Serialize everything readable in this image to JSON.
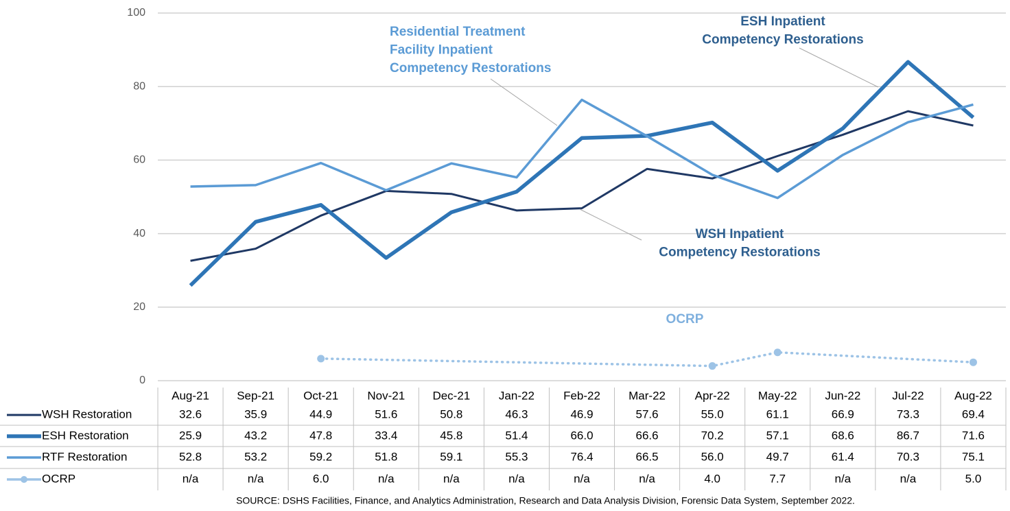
{
  "chart_data": {
    "type": "line",
    "categories": [
      "Aug-21",
      "Sep-21",
      "Oct-21",
      "Nov-21",
      "Dec-21",
      "Jan-22",
      "Feb-22",
      "Mar-22",
      "Apr-22",
      "May-22",
      "Jun-22",
      "Jul-22",
      "Aug-22"
    ],
    "ylim": [
      0,
      100
    ],
    "yticks": [
      0,
      20,
      40,
      60,
      80,
      100
    ],
    "grid": true,
    "series": [
      {
        "name": "WSH Restoration",
        "color": "#1f3864",
        "values": [
          32.6,
          35.9,
          44.9,
          51.6,
          50.8,
          46.3,
          46.9,
          57.6,
          55.0,
          61.1,
          66.9,
          73.3,
          69.4
        ],
        "value_labels": [
          "32.6",
          "35.9",
          "44.9",
          "51.6",
          "50.8",
          "46.3",
          "46.9",
          "57.6",
          "55.0",
          "61.1",
          "66.9",
          "73.3",
          "69.4"
        ]
      },
      {
        "name": "ESH Restoration",
        "color": "#2e75b6",
        "values": [
          25.9,
          43.2,
          47.8,
          33.4,
          45.8,
          51.4,
          66.0,
          66.6,
          70.2,
          57.1,
          68.6,
          86.7,
          71.6
        ],
        "value_labels": [
          "25.9",
          "43.2",
          "47.8",
          "33.4",
          "45.8",
          "51.4",
          "66.0",
          "66.6",
          "70.2",
          "57.1",
          "68.6",
          "86.7",
          "71.6"
        ]
      },
      {
        "name": "RTF Restoration",
        "color": "#5b9bd5",
        "values": [
          52.8,
          53.2,
          59.2,
          51.8,
          59.1,
          55.3,
          76.4,
          66.5,
          56.0,
          49.7,
          61.4,
          70.3,
          75.1
        ],
        "value_labels": [
          "52.8",
          "53.2",
          "59.2",
          "51.8",
          "59.1",
          "55.3",
          "76.4",
          "66.5",
          "56.0",
          "49.7",
          "61.4",
          "70.3",
          "75.1"
        ]
      },
      {
        "name": "OCRP",
        "color": "#9dc3e6",
        "dotted": true,
        "markers": true,
        "connect_gaps": true,
        "values": [
          null,
          null,
          6.0,
          null,
          null,
          null,
          null,
          null,
          4.0,
          7.7,
          null,
          null,
          5.0
        ],
        "value_labels": [
          "n/a",
          "n/a",
          "6.0",
          "n/a",
          "n/a",
          "n/a",
          "n/a",
          "n/a",
          "4.0",
          "7.7",
          "n/a",
          "n/a",
          "5.0"
        ]
      }
    ],
    "annotations": [
      {
        "lines": [
          "Residential Treatment",
          "Facility Inpatient",
          "Competency Restorations"
        ],
        "color": "#5b9bd5"
      },
      {
        "lines": [
          "ESH Inpatient",
          "Competency Restorations"
        ],
        "color": "#2e5f8f"
      },
      {
        "lines": [
          "WSH Inpatient",
          "Competency Restorations"
        ],
        "color": "#2e5f8f"
      },
      {
        "lines": [
          "OCRP"
        ],
        "color": "#7fb0de"
      }
    ],
    "source": "SOURCE: DSHS Facilities, Finance, and Analytics Administration, Research and Data Analysis Division, Forensic Data System, September 2022."
  }
}
